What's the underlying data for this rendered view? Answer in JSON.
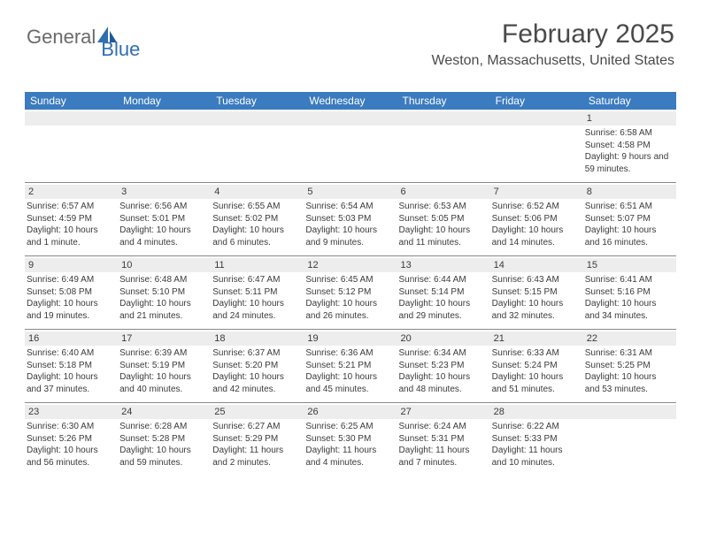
{
  "logo": {
    "general": "General",
    "blue": "Blue"
  },
  "header": {
    "month": "February 2025",
    "location": "Weston, Massachusetts, United States"
  },
  "colors": {
    "header_bg": "#3b7bbf",
    "header_text": "#ffffff",
    "daynum_bg": "#ededed",
    "text": "#3a3a3a",
    "border": "#888888",
    "logo_blue": "#2f6fb0",
    "logo_gray": "#6a6a6a"
  },
  "dayNames": [
    "Sunday",
    "Monday",
    "Tuesday",
    "Wednesday",
    "Thursday",
    "Friday",
    "Saturday"
  ],
  "weeks": [
    [
      {
        "num": "",
        "lines": []
      },
      {
        "num": "",
        "lines": []
      },
      {
        "num": "",
        "lines": []
      },
      {
        "num": "",
        "lines": []
      },
      {
        "num": "",
        "lines": []
      },
      {
        "num": "",
        "lines": []
      },
      {
        "num": "1",
        "lines": [
          "Sunrise: 6:58 AM",
          "Sunset: 4:58 PM",
          "Daylight: 9 hours and 59 minutes."
        ]
      }
    ],
    [
      {
        "num": "2",
        "lines": [
          "Sunrise: 6:57 AM",
          "Sunset: 4:59 PM",
          "Daylight: 10 hours and 1 minute."
        ]
      },
      {
        "num": "3",
        "lines": [
          "Sunrise: 6:56 AM",
          "Sunset: 5:01 PM",
          "Daylight: 10 hours and 4 minutes."
        ]
      },
      {
        "num": "4",
        "lines": [
          "Sunrise: 6:55 AM",
          "Sunset: 5:02 PM",
          "Daylight: 10 hours and 6 minutes."
        ]
      },
      {
        "num": "5",
        "lines": [
          "Sunrise: 6:54 AM",
          "Sunset: 5:03 PM",
          "Daylight: 10 hours and 9 minutes."
        ]
      },
      {
        "num": "6",
        "lines": [
          "Sunrise: 6:53 AM",
          "Sunset: 5:05 PM",
          "Daylight: 10 hours and 11 minutes."
        ]
      },
      {
        "num": "7",
        "lines": [
          "Sunrise: 6:52 AM",
          "Sunset: 5:06 PM",
          "Daylight: 10 hours and 14 minutes."
        ]
      },
      {
        "num": "8",
        "lines": [
          "Sunrise: 6:51 AM",
          "Sunset: 5:07 PM",
          "Daylight: 10 hours and 16 minutes."
        ]
      }
    ],
    [
      {
        "num": "9",
        "lines": [
          "Sunrise: 6:49 AM",
          "Sunset: 5:08 PM",
          "Daylight: 10 hours and 19 minutes."
        ]
      },
      {
        "num": "10",
        "lines": [
          "Sunrise: 6:48 AM",
          "Sunset: 5:10 PM",
          "Daylight: 10 hours and 21 minutes."
        ]
      },
      {
        "num": "11",
        "lines": [
          "Sunrise: 6:47 AM",
          "Sunset: 5:11 PM",
          "Daylight: 10 hours and 24 minutes."
        ]
      },
      {
        "num": "12",
        "lines": [
          "Sunrise: 6:45 AM",
          "Sunset: 5:12 PM",
          "Daylight: 10 hours and 26 minutes."
        ]
      },
      {
        "num": "13",
        "lines": [
          "Sunrise: 6:44 AM",
          "Sunset: 5:14 PM",
          "Daylight: 10 hours and 29 minutes."
        ]
      },
      {
        "num": "14",
        "lines": [
          "Sunrise: 6:43 AM",
          "Sunset: 5:15 PM",
          "Daylight: 10 hours and 32 minutes."
        ]
      },
      {
        "num": "15",
        "lines": [
          "Sunrise: 6:41 AM",
          "Sunset: 5:16 PM",
          "Daylight: 10 hours and 34 minutes."
        ]
      }
    ],
    [
      {
        "num": "16",
        "lines": [
          "Sunrise: 6:40 AM",
          "Sunset: 5:18 PM",
          "Daylight: 10 hours and 37 minutes."
        ]
      },
      {
        "num": "17",
        "lines": [
          "Sunrise: 6:39 AM",
          "Sunset: 5:19 PM",
          "Daylight: 10 hours and 40 minutes."
        ]
      },
      {
        "num": "18",
        "lines": [
          "Sunrise: 6:37 AM",
          "Sunset: 5:20 PM",
          "Daylight: 10 hours and 42 minutes."
        ]
      },
      {
        "num": "19",
        "lines": [
          "Sunrise: 6:36 AM",
          "Sunset: 5:21 PM",
          "Daylight: 10 hours and 45 minutes."
        ]
      },
      {
        "num": "20",
        "lines": [
          "Sunrise: 6:34 AM",
          "Sunset: 5:23 PM",
          "Daylight: 10 hours and 48 minutes."
        ]
      },
      {
        "num": "21",
        "lines": [
          "Sunrise: 6:33 AM",
          "Sunset: 5:24 PM",
          "Daylight: 10 hours and 51 minutes."
        ]
      },
      {
        "num": "22",
        "lines": [
          "Sunrise: 6:31 AM",
          "Sunset: 5:25 PM",
          "Daylight: 10 hours and 53 minutes."
        ]
      }
    ],
    [
      {
        "num": "23",
        "lines": [
          "Sunrise: 6:30 AM",
          "Sunset: 5:26 PM",
          "Daylight: 10 hours and 56 minutes."
        ]
      },
      {
        "num": "24",
        "lines": [
          "Sunrise: 6:28 AM",
          "Sunset: 5:28 PM",
          "Daylight: 10 hours and 59 minutes."
        ]
      },
      {
        "num": "25",
        "lines": [
          "Sunrise: 6:27 AM",
          "Sunset: 5:29 PM",
          "Daylight: 11 hours and 2 minutes."
        ]
      },
      {
        "num": "26",
        "lines": [
          "Sunrise: 6:25 AM",
          "Sunset: 5:30 PM",
          "Daylight: 11 hours and 4 minutes."
        ]
      },
      {
        "num": "27",
        "lines": [
          "Sunrise: 6:24 AM",
          "Sunset: 5:31 PM",
          "Daylight: 11 hours and 7 minutes."
        ]
      },
      {
        "num": "28",
        "lines": [
          "Sunrise: 6:22 AM",
          "Sunset: 5:33 PM",
          "Daylight: 11 hours and 10 minutes."
        ]
      },
      {
        "num": "",
        "lines": []
      }
    ]
  ]
}
